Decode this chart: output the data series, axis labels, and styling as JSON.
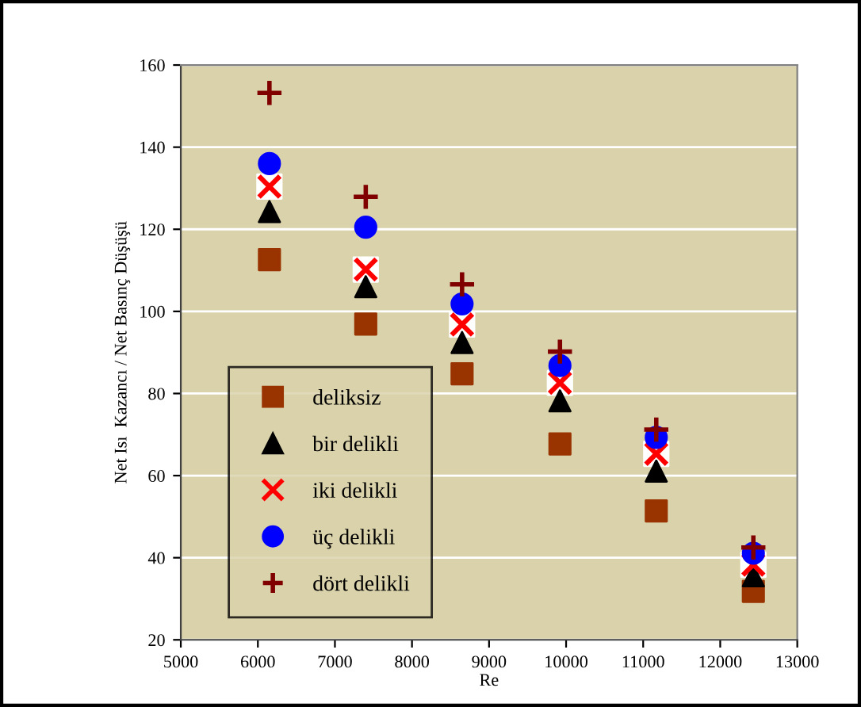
{
  "chart_data": {
    "type": "scatter",
    "xlabel": "Re",
    "ylabel": "Net Isı  Kazancı / Net Basınç Düşüşü",
    "x": [
      6150,
      7400,
      8650,
      9920,
      11170,
      12430
    ],
    "series": [
      {
        "name": "deliksiz",
        "color": "#993300",
        "marker": "square",
        "values": [
          112.6,
          96.9,
          84.8,
          67.7,
          51.4,
          31.8
        ]
      },
      {
        "name": "bir delikli",
        "color": "#000000",
        "marker": "triangle",
        "values": [
          124.3,
          106,
          92.4,
          78.2,
          61.1,
          35.6
        ]
      },
      {
        "name": "iki delikli",
        "color": "#ff0000",
        "marker": "cross",
        "values": [
          130.4,
          110.2,
          96.8,
          82.6,
          65.3,
          38.3
        ]
      },
      {
        "name": "üç delikli",
        "color": "#0000ff",
        "marker": "circle",
        "values": [
          136,
          120.5,
          101.8,
          86.8,
          69.3,
          41.1
        ]
      },
      {
        "name": "dört delikli",
        "color": "#800000",
        "marker": "plus",
        "values": [
          153.2,
          127.9,
          106.6,
          90.2,
          71.2,
          42.5
        ]
      }
    ],
    "xlim": [
      5000,
      13000
    ],
    "xticks": [
      5000,
      6000,
      7000,
      8000,
      9000,
      10000,
      11000,
      12000,
      13000
    ],
    "ylim": [
      20,
      160
    ],
    "yticks": [
      20,
      40,
      60,
      80,
      100,
      120,
      140,
      160
    ],
    "grid": "y",
    "legend": "bottom left"
  }
}
